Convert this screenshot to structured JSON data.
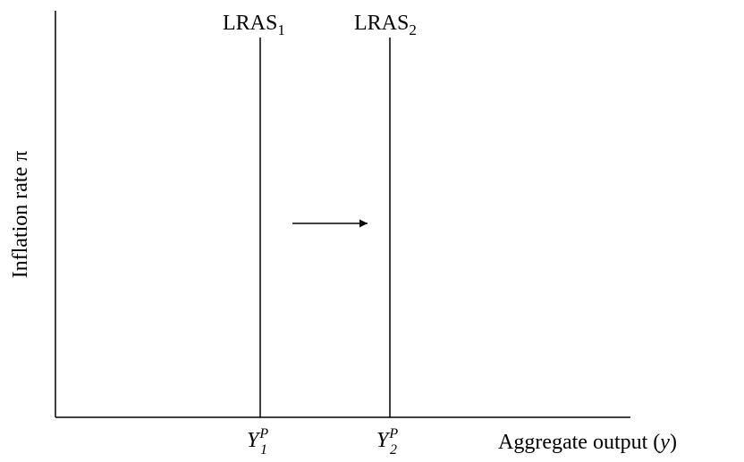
{
  "axes": {
    "y_label": "Inflation rate π",
    "x_label": {
      "text": "Aggregate output (",
      "var": "y",
      "end": ")"
    }
  },
  "curves": [
    {
      "name": "LRAS",
      "sub": "1",
      "x_label": {
        "base": "Y",
        "sub": "1",
        "sup": "P"
      }
    },
    {
      "name": "LRAS",
      "sub": "2",
      "x_label": {
        "base": "Y",
        "sub": "2",
        "sup": "P"
      }
    }
  ]
}
